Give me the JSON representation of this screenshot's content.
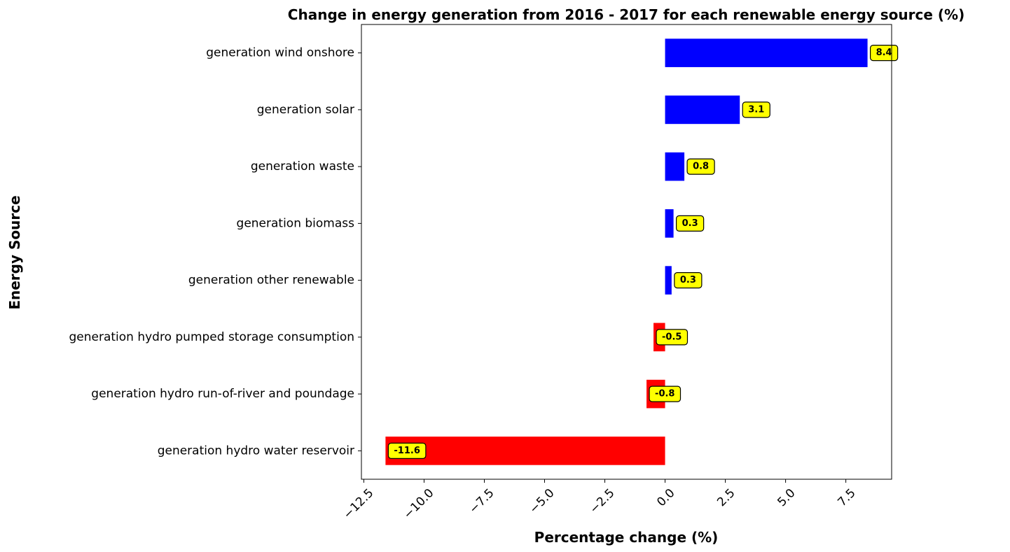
{
  "chart_data": {
    "type": "bar",
    "orientation": "horizontal",
    "title": "Change in energy generation from 2016 - 2017 for each renewable energy source (%)",
    "xlabel": "Percentage change (%)",
    "ylabel": "Energy Source",
    "categories": [
      "generation wind onshore",
      "generation solar",
      "generation waste",
      "generation biomass",
      "generation other renewable",
      "generation hydro pumped storage consumption",
      "generation hydro run-of-river and poundage",
      "generation hydro water reservoir"
    ],
    "values": [
      8.4,
      3.1,
      0.8,
      0.35,
      0.27,
      -0.48,
      -0.77,
      -11.6
    ],
    "data_labels": [
      "8.4",
      "3.1",
      "0.8",
      "0.3",
      "0.3",
      "-0.5",
      "-0.8",
      "-11.6"
    ],
    "xlim": [
      -12.6,
      9.4
    ],
    "xticks": [
      -12.5,
      -10.0,
      -7.5,
      -5.0,
      -2.5,
      0.0,
      2.5,
      5.0,
      7.5
    ],
    "xtick_labels": [
      "−12.5",
      "−10.0",
      "−7.5",
      "−5.0",
      "−2.5",
      "0.0",
      "2.5",
      "5.0",
      "7.5"
    ],
    "grid": false,
    "colors": {
      "positive": "#0000ff",
      "negative": "#ff0000",
      "label_fill": "#ffff00",
      "label_stroke": "#000000"
    }
  }
}
